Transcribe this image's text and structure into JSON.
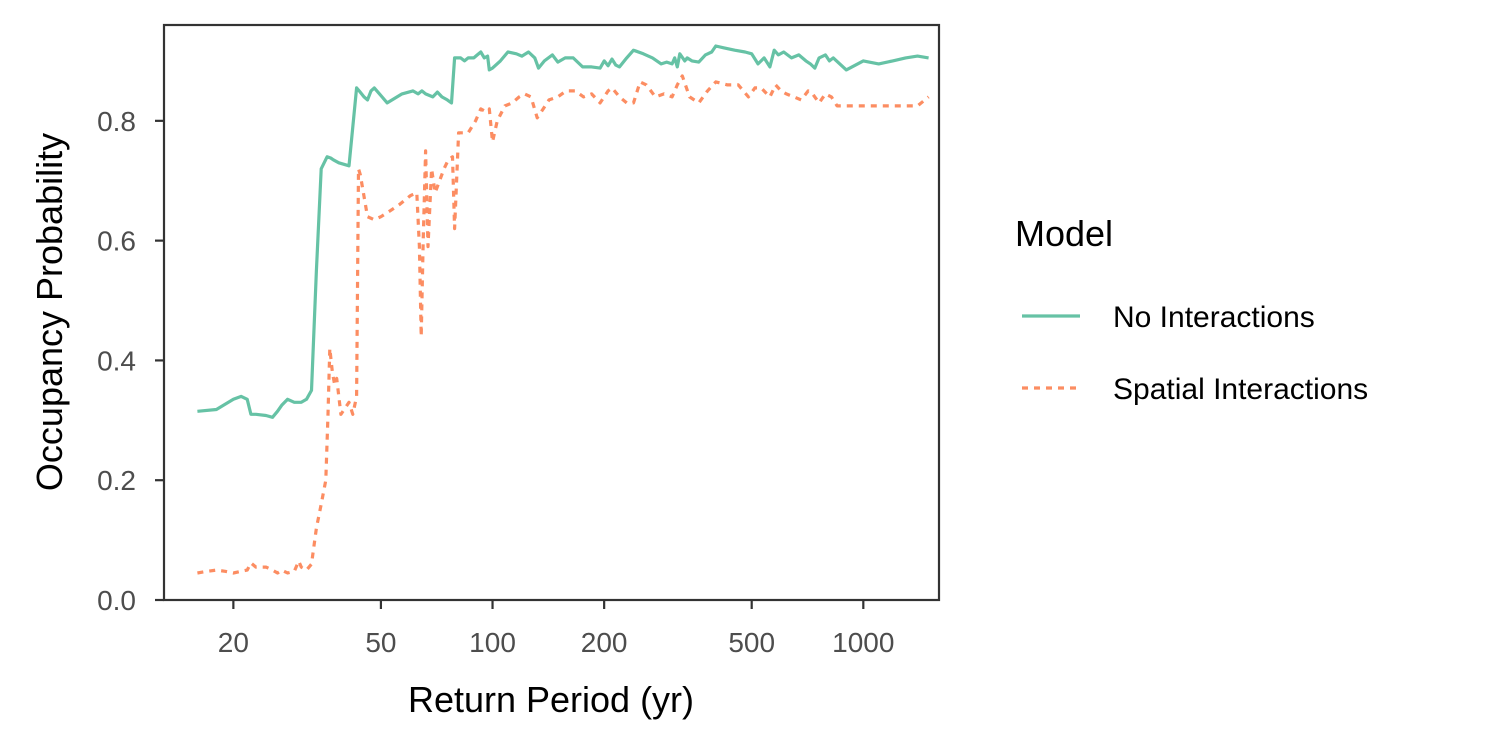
{
  "chart_data": {
    "type": "line",
    "title": "",
    "xlabel": "Return Period (yr)",
    "ylabel": "Occupancy Probability",
    "x_scale": "log10",
    "xlim": [
      13,
      1600
    ],
    "ylim": [
      0,
      0.96
    ],
    "x_ticks": [
      20,
      50,
      100,
      200,
      500,
      1000
    ],
    "x_tick_labels": [
      "20",
      "50",
      "100",
      "200",
      "500",
      "1000"
    ],
    "y_ticks": [
      0.0,
      0.2,
      0.4,
      0.6,
      0.8
    ],
    "y_tick_labels": [
      "0.0",
      "0.2",
      "0.4",
      "0.6",
      "0.8"
    ],
    "grid": false,
    "legend": {
      "title": "Model",
      "position": "right"
    },
    "series": [
      {
        "name": "No Interactions",
        "color": "#66c2a5",
        "dash": "solid",
        "x": [
          16,
          18,
          20,
          21,
          21.8,
          22.3,
          23,
          24.5,
          25.5,
          26.3,
          27,
          28,
          29.2,
          30.5,
          31.5,
          32.5,
          33.5,
          34.5,
          35.8,
          36.6,
          37.2,
          38.5,
          41,
          43,
          43.7,
          45,
          46,
          47,
          48,
          52,
          57,
          61,
          63,
          64.5,
          66,
          69,
          71,
          73,
          75.5,
          77.5,
          79,
          82,
          84,
          86,
          89,
          91,
          93,
          95,
          97,
          98,
          100,
          105,
          110,
          116,
          120,
          125,
          130,
          133,
          138,
          145,
          150,
          157,
          165,
          175,
          185,
          195,
          200,
          205,
          210,
          215,
          220,
          230,
          240,
          255,
          270,
          285,
          295,
          305,
          310,
          315,
          320,
          330,
          335,
          345,
          360,
          375,
          390,
          400,
          420,
          450,
          480,
          500,
          520,
          530,
          540,
          560,
          575,
          590,
          610,
          640,
          670,
          700,
          720,
          740,
          760,
          790,
          810,
          830,
          900,
          1000,
          1100,
          1200,
          1300,
          1400,
          1500
        ],
        "y": [
          0.315,
          0.318,
          0.335,
          0.34,
          0.335,
          0.31,
          0.31,
          0.308,
          0.305,
          0.315,
          0.325,
          0.335,
          0.33,
          0.33,
          0.335,
          0.35,
          0.55,
          0.72,
          0.74,
          0.738,
          0.735,
          0.73,
          0.725,
          0.855,
          0.85,
          0.84,
          0.835,
          0.85,
          0.855,
          0.83,
          0.845,
          0.85,
          0.845,
          0.85,
          0.845,
          0.84,
          0.848,
          0.84,
          0.835,
          0.83,
          0.905,
          0.905,
          0.9,
          0.905,
          0.905,
          0.91,
          0.915,
          0.905,
          0.908,
          0.885,
          0.888,
          0.9,
          0.915,
          0.912,
          0.908,
          0.915,
          0.905,
          0.888,
          0.9,
          0.91,
          0.898,
          0.905,
          0.905,
          0.89,
          0.89,
          0.888,
          0.9,
          0.892,
          0.903,
          0.893,
          0.89,
          0.905,
          0.918,
          0.912,
          0.905,
          0.895,
          0.898,
          0.895,
          0.905,
          0.89,
          0.912,
          0.9,
          0.905,
          0.9,
          0.898,
          0.91,
          0.915,
          0.925,
          0.922,
          0.918,
          0.915,
          0.912,
          0.895,
          0.9,
          0.905,
          0.89,
          0.918,
          0.91,
          0.915,
          0.905,
          0.91,
          0.9,
          0.895,
          0.888,
          0.905,
          0.91,
          0.9,
          0.905,
          0.885,
          0.9,
          0.895,
          0.9,
          0.905,
          0.908,
          0.905
        ]
      },
      {
        "name": "Spatial Interactions",
        "color": "#fc8d62",
        "dash": "dashed",
        "x": [
          16,
          17,
          18,
          19,
          20,
          21,
          21.8,
          22.3,
          23,
          24.5,
          25.5,
          26.3,
          27,
          28,
          29.2,
          30,
          30.5,
          31.5,
          32.5,
          33.5,
          34.5,
          35.5,
          36,
          36.4,
          37,
          37.5,
          38,
          39,
          40,
          41,
          42,
          43,
          43.5,
          44,
          46,
          48,
          50,
          53,
          56,
          60,
          62.5,
          63.5,
          64.2,
          65,
          66,
          67,
          68.5,
          70,
          72,
          74,
          76,
          78,
          79,
          81,
          83,
          86,
          90,
          93,
          96,
          98,
          100,
          103,
          108,
          113,
          118,
          122,
          127,
          132,
          137,
          142,
          150,
          158,
          167,
          176,
          185,
          195,
          205,
          210,
          220,
          230,
          240,
          250,
          260,
          275,
          290,
          305,
          315,
          325,
          340,
          360,
          380,
          400,
          430,
          460,
          490,
          510,
          530,
          560,
          580,
          600,
          620,
          650,
          680,
          710,
          730,
          760,
          790,
          820,
          850,
          900,
          1000,
          1100,
          1200,
          1300,
          1400,
          1500
        ],
        "y": [
          0.045,
          0.048,
          0.05,
          0.048,
          0.045,
          0.048,
          0.05,
          0.062,
          0.055,
          0.055,
          0.05,
          0.045,
          0.05,
          0.045,
          0.048,
          0.065,
          0.055,
          0.05,
          0.06,
          0.12,
          0.16,
          0.2,
          0.31,
          0.42,
          0.38,
          0.36,
          0.37,
          0.31,
          0.32,
          0.33,
          0.31,
          0.34,
          0.72,
          0.71,
          0.64,
          0.635,
          0.64,
          0.65,
          0.66,
          0.675,
          0.68,
          0.59,
          0.44,
          0.6,
          0.75,
          0.59,
          0.72,
          0.68,
          0.7,
          0.72,
          0.735,
          0.74,
          0.62,
          0.78,
          0.78,
          0.78,
          0.8,
          0.82,
          0.815,
          0.82,
          0.765,
          0.8,
          0.825,
          0.83,
          0.84,
          0.845,
          0.84,
          0.805,
          0.82,
          0.835,
          0.84,
          0.85,
          0.85,
          0.84,
          0.845,
          0.83,
          0.85,
          0.855,
          0.84,
          0.83,
          0.83,
          0.865,
          0.86,
          0.84,
          0.845,
          0.84,
          0.86,
          0.875,
          0.84,
          0.83,
          0.85,
          0.865,
          0.86,
          0.86,
          0.84,
          0.855,
          0.855,
          0.84,
          0.86,
          0.85,
          0.845,
          0.84,
          0.835,
          0.85,
          0.845,
          0.83,
          0.845,
          0.84,
          0.825,
          0.825,
          0.825,
          0.825,
          0.825,
          0.825,
          0.825,
          0.84
        ]
      }
    ]
  }
}
